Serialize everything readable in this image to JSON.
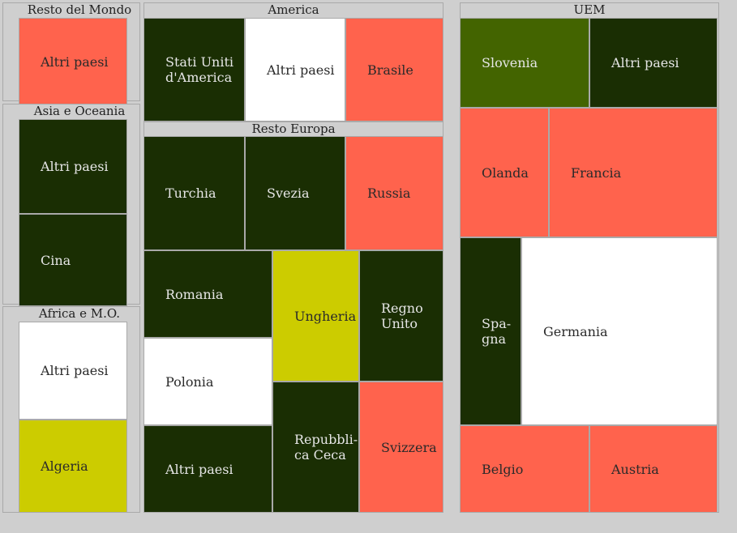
{
  "palette": {
    "dark_green": "#1a2e03",
    "olive": "#436400",
    "coral": "#ff634d",
    "white": "#ffffff",
    "yellow": "#cccc00",
    "background": "#cfcfcf"
  },
  "chart_data": {
    "type": "treemap",
    "groups": [
      {
        "name": "Resto del Mondo",
        "children": [
          {
            "label": "Altri paesi",
            "color": "coral"
          }
        ]
      },
      {
        "name": "Asia e Oceania",
        "children": [
          {
            "label": "Altri paesi",
            "color": "dark_green"
          },
          {
            "label": "Cina",
            "color": "dark_green"
          }
        ]
      },
      {
        "name": "Africa e M.O.",
        "children": [
          {
            "label": "Altri paesi",
            "color": "white"
          },
          {
            "label": "Algeria",
            "color": "yellow"
          }
        ]
      },
      {
        "name": "America",
        "children": [
          {
            "label": "Stati Uniti d'America",
            "color": "dark_green"
          },
          {
            "label": "Altri paesi",
            "color": "white"
          },
          {
            "label": "Brasile",
            "color": "coral"
          }
        ]
      },
      {
        "name": "Resto Europa",
        "children": [
          {
            "label": "Turchia",
            "color": "dark_green"
          },
          {
            "label": "Svezia",
            "color": "dark_green"
          },
          {
            "label": "Russia",
            "color": "coral"
          },
          {
            "label": "Romania",
            "color": "dark_green"
          },
          {
            "label": "Polonia",
            "color": "white"
          },
          {
            "label": "Altri paesi",
            "color": "dark_green"
          },
          {
            "label": "Ungheria",
            "color": "yellow"
          },
          {
            "label": "Regno Unito",
            "color": "dark_green"
          },
          {
            "label": "Repubblica Ceca",
            "color": "dark_green"
          },
          {
            "label": "Svizzera",
            "color": "coral"
          }
        ]
      },
      {
        "name": "UEM",
        "children": [
          {
            "label": "Slovenia",
            "color": "olive"
          },
          {
            "label": "Altri paesi",
            "color": "dark_green"
          },
          {
            "label": "Olanda",
            "color": "coral"
          },
          {
            "label": "Francia",
            "color": "coral"
          },
          {
            "label": "Spagna",
            "color": "dark_green"
          },
          {
            "label": "Germania",
            "color": "white"
          },
          {
            "label": "Belgio",
            "color": "coral"
          },
          {
            "label": "Austria",
            "color": "coral"
          }
        ]
      }
    ]
  }
}
